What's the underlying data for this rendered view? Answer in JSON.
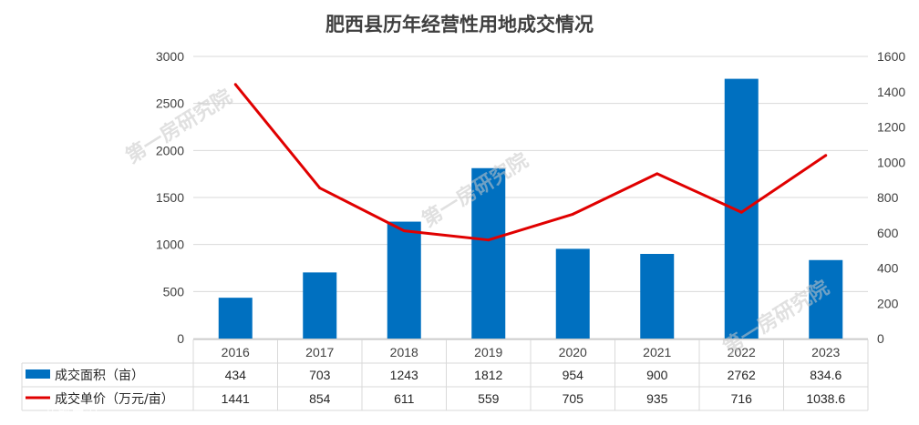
{
  "chart_data": {
    "type": "bar",
    "title": "肥西县历年经营性用地成交情况",
    "categories": [
      "2016",
      "2017",
      "2018",
      "2019",
      "2020",
      "2021",
      "2022",
      "2023"
    ],
    "series": [
      {
        "name": "成交面积（亩）",
        "type": "bar",
        "axis": "left",
        "color": "#0070c0",
        "values": [
          434,
          703,
          1243,
          1812,
          954,
          900,
          2762,
          834.6
        ],
        "labels": [
          "434",
          "703",
          "1243",
          "1812",
          "954",
          "900",
          "2762",
          "834.6"
        ]
      },
      {
        "name": "成交单价（万元/亩）",
        "type": "line",
        "axis": "right",
        "color": "#e00000",
        "values": [
          1441,
          854,
          611,
          559,
          705,
          935,
          716,
          1038.6
        ],
        "labels": [
          "1441",
          "854",
          "611",
          "559",
          "705",
          "935",
          "716",
          "1038.6"
        ]
      }
    ],
    "y_left": {
      "min": 0,
      "max": 3000,
      "ticks": [
        "0",
        "500",
        "1000",
        "1500",
        "2000",
        "2500",
        "3000"
      ]
    },
    "y_right": {
      "min": 0,
      "max": 1600,
      "ticks": [
        "0",
        "200",
        "400",
        "600",
        "800",
        "1000",
        "1200",
        "1400",
        "1600"
      ]
    },
    "grid": true,
    "legend_placement": "data-table"
  },
  "watermark": {
    "text": "第一房研究院",
    "corner_text": "八郎房说"
  }
}
